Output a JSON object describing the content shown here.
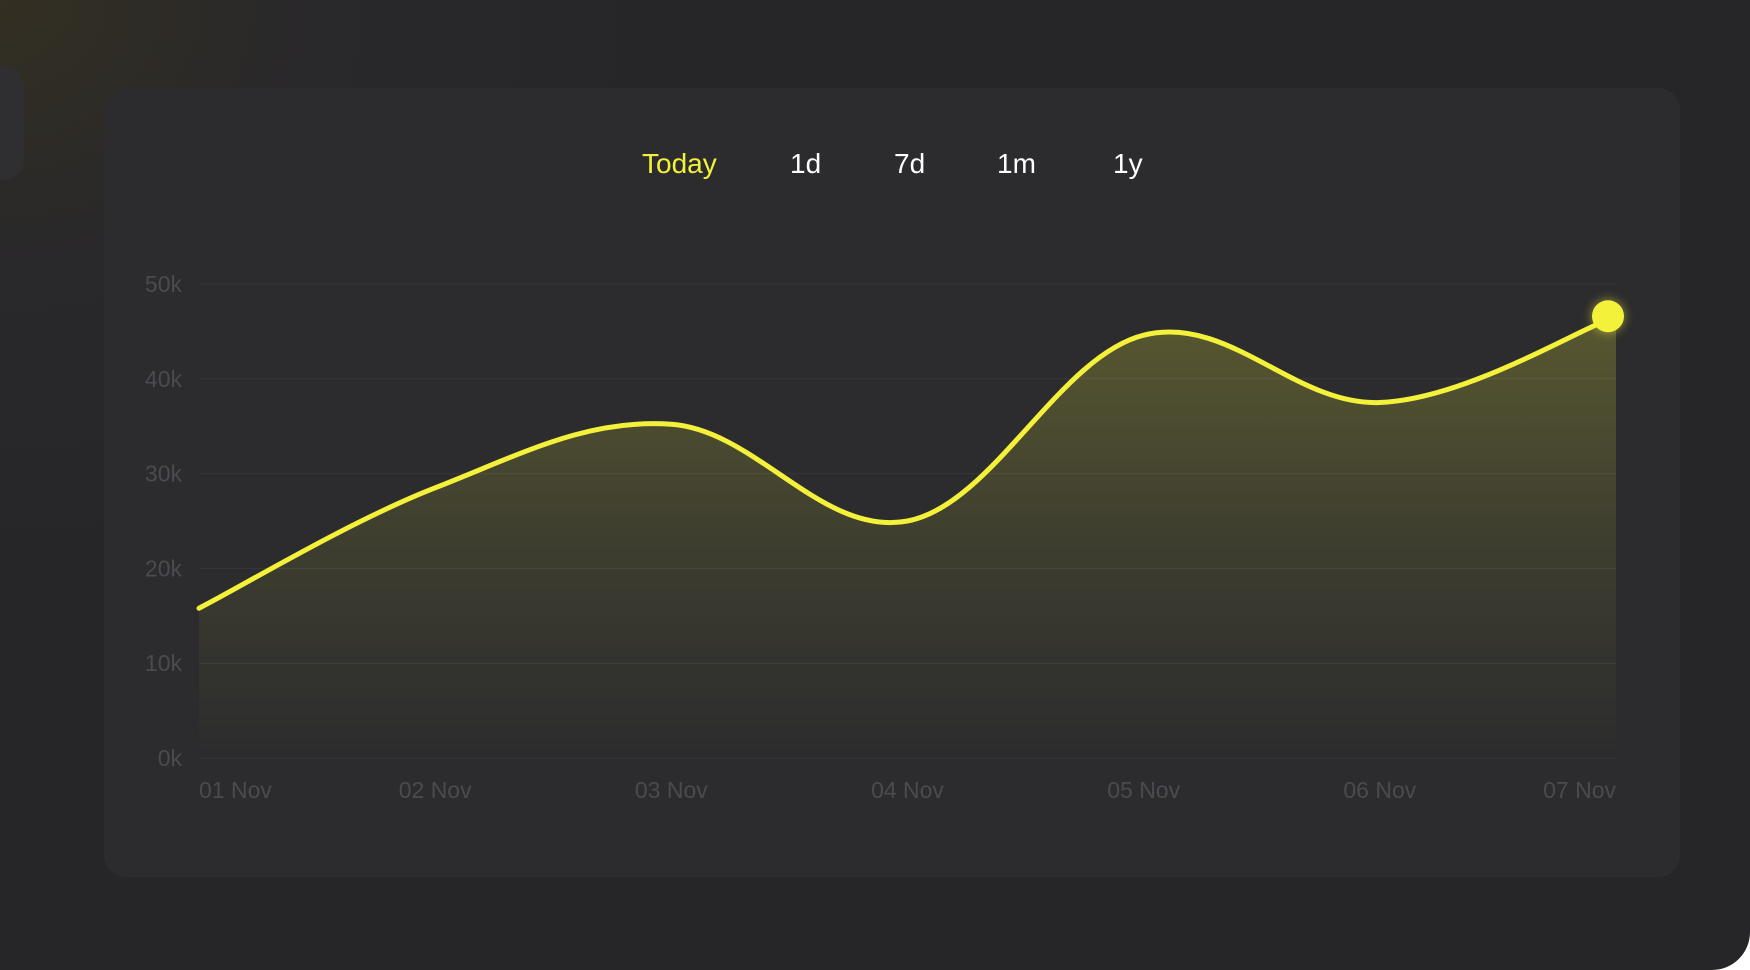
{
  "tabs": [
    {
      "label": "Today",
      "active": true
    },
    {
      "label": "1d",
      "active": false
    },
    {
      "label": "7d",
      "active": false
    },
    {
      "label": "1m",
      "active": false
    },
    {
      "label": "1y",
      "active": false
    }
  ],
  "colors": {
    "accent": "#f4f13a",
    "background": "#262628",
    "card": "#2c2c2e",
    "axis_text": "#4a4a50",
    "grid": "#38383c"
  },
  "chart_data": {
    "type": "area",
    "categories": [
      "01 Nov",
      "02 Nov",
      "03 Nov",
      "04 Nov",
      "05 Nov",
      "06 Nov",
      "07 Nov"
    ],
    "series": [
      {
        "values": [
          15800,
          28500,
          35200,
          25000,
          44600,
          37500,
          46600
        ]
      }
    ],
    "yticks": [
      "0k",
      "10k",
      "20k",
      "30k",
      "40k",
      "50k"
    ],
    "ylim": [
      0,
      50000
    ],
    "grid": true,
    "highlight_last_point": true
  }
}
